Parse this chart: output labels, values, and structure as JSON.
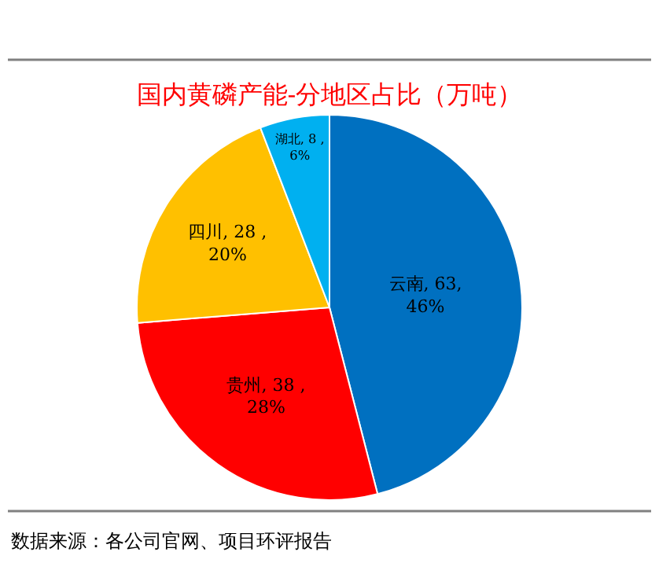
{
  "chart_data": {
    "type": "pie",
    "title": "国内黄磷产能-分地区占比（万吨）",
    "categories": [
      "云南",
      "贵州",
      "四川",
      "湖北"
    ],
    "values": [
      63,
      38,
      28,
      8
    ],
    "colors": [
      "#0070c0",
      "#ff0000",
      "#ffc000",
      "#00b0f0"
    ],
    "value_labels": [
      ", 63,\n46%",
      ", 38 ,\n28%",
      ", 28 ,\n20%",
      ", 8 ,\n6%"
    ],
    "annotations": [
      "数据来源：各公司官网、项目环评报告"
    ],
    "legend": false
  }
}
